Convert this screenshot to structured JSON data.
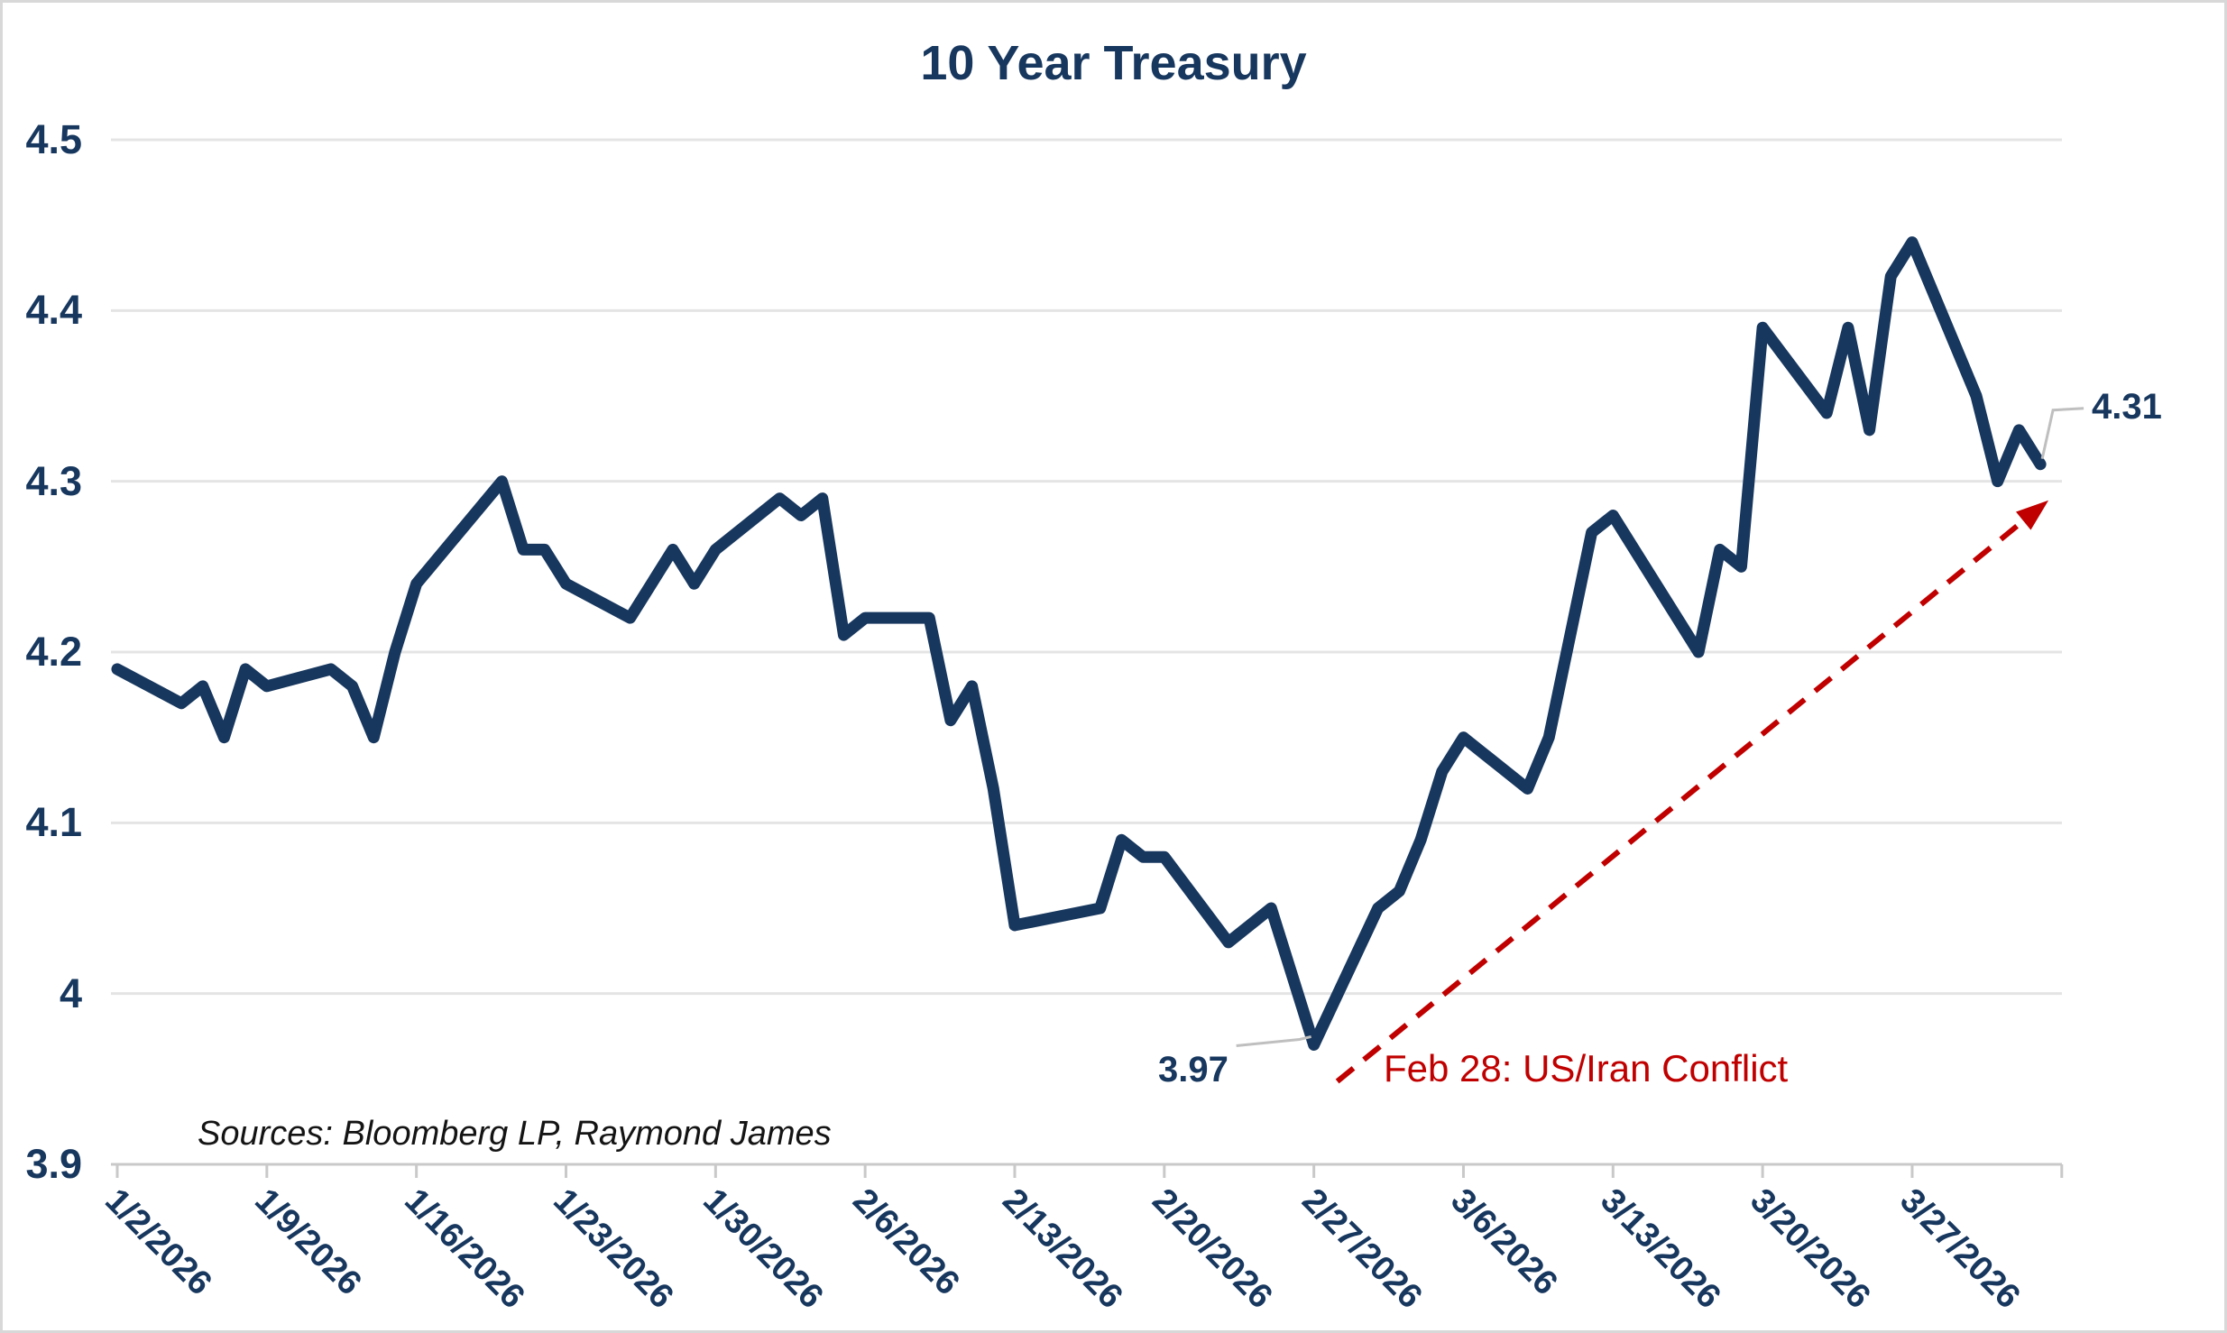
{
  "chart_data": {
    "type": "line",
    "title": "10 Year Treasury",
    "ylim": [
      3.9,
      4.5
    ],
    "grid": "horizontal",
    "legend": "none",
    "line_color": "#17375E",
    "grid_color": "#e4e4e4",
    "axis_color": "#c9c9c9",
    "y_tick_labels": [
      "4.5",
      "4.4",
      "4.3",
      "4.2",
      "4.1",
      "4",
      "3.9"
    ],
    "y_tick_values": [
      4.5,
      4.4,
      4.3,
      4.2,
      4.1,
      4.0,
      3.9
    ],
    "x_tick_labels": [
      "1/2/2026",
      "1/9/2026",
      "1/16/2026",
      "1/23/2026",
      "1/30/2026",
      "2/6/2026",
      "2/13/2026",
      "2/20/2026",
      "2/27/2026",
      "3/6/2026",
      "3/13/2026",
      "3/20/2026",
      "3/27/2026"
    ],
    "x_axis_extra_tick": "4/3/2026",
    "series": [
      {
        "name": "10 Year Treasury",
        "x": [
          "1/2/2026",
          "1/5/2026",
          "1/6/2026",
          "1/7/2026",
          "1/8/2026",
          "1/9/2026",
          "1/12/2026",
          "1/13/2026",
          "1/14/2026",
          "1/15/2026",
          "1/16/2026",
          "1/20/2026",
          "1/21/2026",
          "1/22/2026",
          "1/23/2026",
          "1/26/2026",
          "1/27/2026",
          "1/28/2026",
          "1/29/2026",
          "1/30/2026",
          "2/2/2026",
          "2/3/2026",
          "2/4/2026",
          "2/5/2026",
          "2/6/2026",
          "2/9/2026",
          "2/10/2026",
          "2/11/2026",
          "2/12/2026",
          "2/13/2026",
          "2/17/2026",
          "2/18/2026",
          "2/19/2026",
          "2/20/2026",
          "2/23/2026",
          "2/24/2026",
          "2/25/2026",
          "2/26/2026",
          "2/27/2026",
          "3/2/2026",
          "3/3/2026",
          "3/4/2026",
          "3/5/2026",
          "3/6/2026",
          "3/9/2026",
          "3/10/2026",
          "3/11/2026",
          "3/12/2026",
          "3/13/2026",
          "3/16/2026",
          "3/17/2026",
          "3/18/2026",
          "3/19/2026",
          "3/20/2026",
          "3/23/2026",
          "3/24/2026",
          "3/25/2026",
          "3/26/2026",
          "3/27/2026",
          "3/30/2026",
          "3/31/2026",
          "4/1/2026",
          "4/2/2026"
        ],
        "values": [
          4.19,
          4.17,
          4.18,
          4.15,
          4.19,
          4.18,
          4.19,
          4.18,
          4.15,
          4.2,
          4.24,
          4.3,
          4.26,
          4.26,
          4.24,
          4.22,
          4.24,
          4.26,
          4.24,
          4.26,
          4.29,
          4.28,
          4.29,
          4.21,
          4.22,
          4.22,
          4.16,
          4.18,
          4.12,
          4.04,
          4.05,
          4.09,
          4.08,
          4.08,
          4.03,
          4.04,
          4.05,
          4.01,
          3.97,
          4.05,
          4.06,
          4.09,
          4.13,
          4.15,
          4.12,
          4.15,
          4.21,
          4.27,
          4.28,
          4.22,
          4.2,
          4.26,
          4.25,
          4.39,
          4.34,
          4.39,
          4.33,
          4.42,
          4.44,
          4.35,
          4.3,
          4.33,
          4.31
        ]
      }
    ],
    "annotations": {
      "low": {
        "label": "3.97",
        "date": "2/27/2026",
        "value": 3.97
      },
      "end": {
        "label": "4.31",
        "date": "4/2/2026",
        "value": 4.31
      },
      "event": {
        "text": "Feb 28: US/Iran Conflict",
        "color": "#C00000",
        "style": "red dashed arrow pointing up-right at line end"
      }
    }
  },
  "sources": {
    "text": "Sources: Bloomberg LP, Raymond James"
  }
}
